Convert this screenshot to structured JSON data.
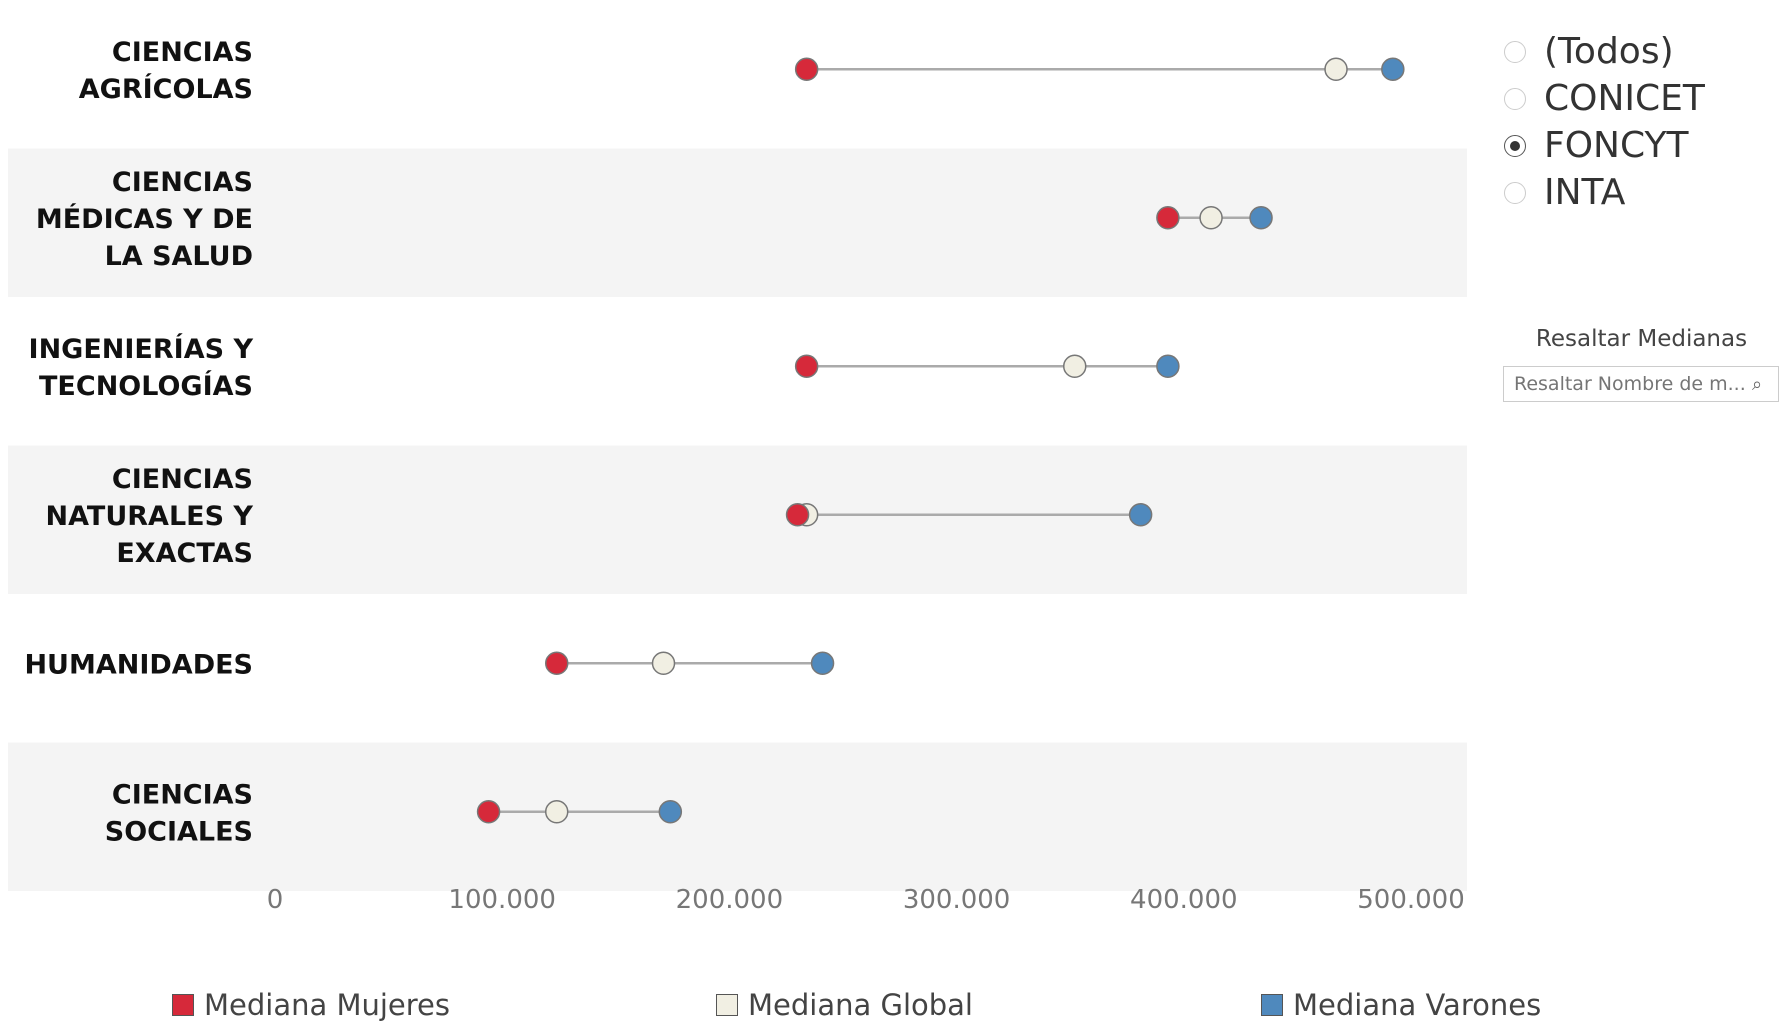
{
  "chart_data": {
    "type": "dumbbell",
    "categories": [
      "CIENCIAS\nAGRÍCOLAS",
      "CIENCIAS\nMÉDICAS Y DE\nLA SALUD",
      "INGENIERÍAS Y\nTECNOLOGÍAS",
      "CIENCIAS\nNATURALES Y\nEXACTAS",
      "HUMANIDADES",
      "CIENCIAS\nSOCIALES"
    ],
    "series": [
      {
        "name": "Mediana Mujeres",
        "color": "#d6293a",
        "values": [
          234000,
          393000,
          234000,
          230000,
          124000,
          94000
        ]
      },
      {
        "name": "Mediana Global",
        "color": "#f1efe3",
        "values": [
          467000,
          412000,
          352000,
          234000,
          171000,
          124000
        ]
      },
      {
        "name": "Mediana Varones",
        "color": "#4f89bd",
        "values": [
          492000,
          434000,
          393000,
          381000,
          241000,
          174000
        ]
      }
    ],
    "xlim": [
      0,
      520000
    ],
    "xticks": [
      0,
      100000,
      200000,
      300000,
      400000,
      500000
    ],
    "xtick_labels": [
      "0",
      "100.000",
      "200.000",
      "300.000",
      "400.000",
      "500.000"
    ],
    "grid": false,
    "legend_position": "bottom",
    "band_color": "#f4f4f4"
  },
  "filter": {
    "options": [
      "(Todos)",
      "CONICET",
      "FONCYT",
      "INTA"
    ],
    "selected": "FONCYT"
  },
  "highlight": {
    "title": "Resaltar Medianas",
    "placeholder": "Resaltar Nombre de m...",
    "icon": "search-icon"
  }
}
